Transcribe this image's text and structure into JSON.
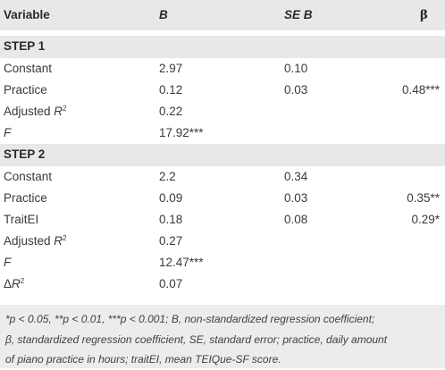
{
  "header": {
    "col_variable": "Variable",
    "col_b": "B",
    "col_seb": "SE B",
    "col_beta": "β"
  },
  "step1": {
    "title": "STEP 1",
    "rows": [
      {
        "variable": "Constant",
        "b": "2.97",
        "seb": "0.10",
        "beta": ""
      },
      {
        "variable": "Practice",
        "b": "0.12",
        "seb": "0.03",
        "beta": "0.48***"
      },
      {
        "variable_prefix": "Adjusted ",
        "variable_italic": "R",
        "variable_sup": "2",
        "b": "0.22",
        "seb": "",
        "beta": ""
      },
      {
        "variable_italic": "F",
        "b": "17.92***",
        "seb": "",
        "beta": ""
      }
    ]
  },
  "step2": {
    "title": "STEP 2",
    "rows": [
      {
        "variable": "Constant",
        "b": "2.2",
        "seb": "0.34",
        "beta": ""
      },
      {
        "variable": "Practice",
        "b": "0.09",
        "seb": "0.03",
        "beta": "0.35**"
      },
      {
        "variable": "TraitEI",
        "b": "0.18",
        "seb": "0.08",
        "beta": "0.29*"
      },
      {
        "variable_prefix": "Adjusted ",
        "variable_italic": "R",
        "variable_sup": "2",
        "b": "0.27",
        "seb": "",
        "beta": ""
      },
      {
        "variable_italic": "F",
        "b": "12.47***",
        "seb": "",
        "beta": ""
      },
      {
        "variable_prefix": "Δ",
        "variable_italic": "R",
        "variable_sup": "2",
        "b": "0.07",
        "seb": "",
        "beta": ""
      }
    ]
  },
  "footnote": {
    "line1": "*p < 0.05, **p < 0.01, ***p < 0.001; B, non-standardized regression coefficient;",
    "line2": "β, standardized regression coefficient, SE, standard error; practice, daily amount",
    "line3": "of piano practice in hours; traitEI, mean TEIQue-SF score."
  },
  "colors": {
    "shade": "#e8e8e8",
    "text": "#3a3a3a"
  }
}
